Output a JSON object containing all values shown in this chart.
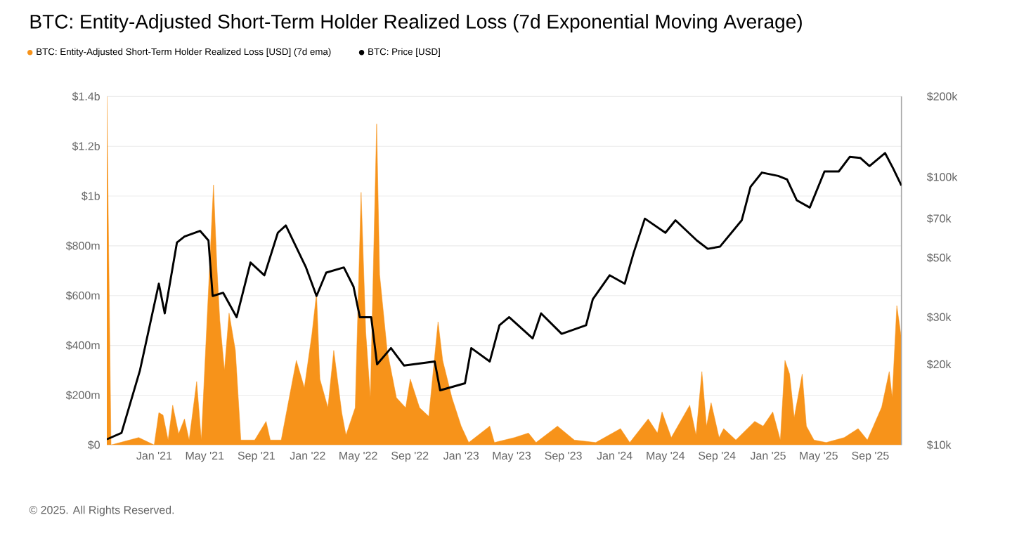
{
  "chart_data": {
    "type": "area",
    "title": "BTC: Entity-Adjusted Short-Term Holder Realized Loss (7d Exponential Moving Average)",
    "annotations": [
      "© 2025. All Rights Reserved."
    ],
    "legend": "top left",
    "grid": "y",
    "log": "y2",
    "xlim": [
      "2020-09-10",
      "2025-11-14"
    ],
    "xticks": [
      {
        "value": "2021-01-01",
        "label": "Jan '21"
      },
      {
        "value": "2021-05-01",
        "label": "May '21"
      },
      {
        "value": "2021-09-01",
        "label": "Sep '21"
      },
      {
        "value": "2022-01-01",
        "label": "Jan '22"
      },
      {
        "value": "2022-05-01",
        "label": "May '22"
      },
      {
        "value": "2022-09-01",
        "label": "Sep '22"
      },
      {
        "value": "2023-01-01",
        "label": "Jan '23"
      },
      {
        "value": "2023-05-01",
        "label": "May '23"
      },
      {
        "value": "2023-09-01",
        "label": "Sep '23"
      },
      {
        "value": "2024-01-01",
        "label": "Jan '24"
      },
      {
        "value": "2024-05-01",
        "label": "May '24"
      },
      {
        "value": "2024-09-01",
        "label": "Sep '24"
      },
      {
        "value": "2025-01-01",
        "label": "Jan '25"
      },
      {
        "value": "2025-05-01",
        "label": "May '25"
      },
      {
        "value": "2025-09-01",
        "label": "Sep '25"
      }
    ],
    "ylim": [
      0,
      1400000000.0
    ],
    "yticks": [
      {
        "value": 0,
        "label": "$0"
      },
      {
        "value": 200000000.0,
        "label": "$200m"
      },
      {
        "value": 400000000.0,
        "label": "$400m"
      },
      {
        "value": 600000000.0,
        "label": "$600m"
      },
      {
        "value": 800000000.0,
        "label": "$800m"
      },
      {
        "value": 1000000000.0,
        "label": "$1b"
      },
      {
        "value": 1200000000.0,
        "label": "$1.2b"
      },
      {
        "value": 1400000000.0,
        "label": "$1.4b"
      }
    ],
    "y2lim": [
      10000,
      200000
    ],
    "y2ticks": [
      {
        "value": 10000,
        "label": "$10k"
      },
      {
        "value": 20000,
        "label": "$20k"
      },
      {
        "value": 30000,
        "label": "$30k"
      },
      {
        "value": 50000,
        "label": "$50k"
      },
      {
        "value": 70000,
        "label": "$70k"
      },
      {
        "value": 100000,
        "label": "$100k"
      },
      {
        "value": 200000,
        "label": "$200k"
      }
    ],
    "series": [
      {
        "name": "BTC: Entity-Adjusted Short-Term Holder Realized Loss [USD] (7d ema)",
        "color": "#f7931a",
        "x": [
          "2020-09-10",
          "2020-09-20",
          "2020-11-25",
          "2021-01-01",
          "2021-01-12",
          "2021-01-22",
          "2021-02-03",
          "2021-02-14",
          "2021-02-28",
          "2021-03-14",
          "2021-03-25",
          "2021-04-12",
          "2021-04-23",
          "2021-05-22",
          "2021-05-30",
          "2021-06-06",
          "2021-06-17",
          "2021-06-28",
          "2021-07-13",
          "2021-07-26",
          "2021-08-28",
          "2021-09-24",
          "2021-10-04",
          "2021-10-30",
          "2021-12-05",
          "2021-12-24",
          "2022-01-11",
          "2022-01-22",
          "2022-01-30",
          "2022-02-18",
          "2022-03-04",
          "2022-03-23",
          "2022-04-02",
          "2022-04-24",
          "2022-05-08",
          "2022-05-19",
          "2022-05-30",
          "2022-06-14",
          "2022-06-21",
          "2022-07-09",
          "2022-07-31",
          "2022-08-22",
          "2022-09-02",
          "2022-09-24",
          "2022-10-16",
          "2022-11-07",
          "2022-11-18",
          "2022-12-10",
          "2023-01-01",
          "2023-01-19",
          "2023-03-10",
          "2023-03-21",
          "2023-05-08",
          "2023-06-10",
          "2023-06-28",
          "2023-08-18",
          "2023-09-27",
          "2023-11-17",
          "2024-01-15",
          "2024-02-06",
          "2024-03-21",
          "2024-04-12",
          "2024-04-23",
          "2024-05-15",
          "2024-06-28",
          "2024-07-13",
          "2024-07-27",
          "2024-08-07",
          "2024-08-18",
          "2024-09-06",
          "2024-09-17",
          "2024-10-16",
          "2024-11-30",
          "2024-12-20",
          "2025-01-12",
          "2025-01-30",
          "2025-02-10",
          "2025-02-21",
          "2025-03-04",
          "2025-03-23",
          "2025-04-02",
          "2025-04-20",
          "2025-05-19",
          "2025-07-01",
          "2025-08-03",
          "2025-08-25",
          "2025-09-28",
          "2025-10-16",
          "2025-10-23",
          "2025-11-03",
          "2025-11-14"
        ],
        "values": [
          1400000000.0,
          0,
          30000000.0,
          0,
          130000000.0,
          120000000.0,
          20000000.0,
          160000000.0,
          45000000.0,
          105000000.0,
          20000000.0,
          255000000.0,
          20000000.0,
          1045000000.0,
          720000000.0,
          500000000.0,
          300000000.0,
          530000000.0,
          380000000.0,
          20000000.0,
          20000000.0,
          95000000.0,
          20000000.0,
          20000000.0,
          340000000.0,
          230000000.0,
          445000000.0,
          610000000.0,
          265000000.0,
          150000000.0,
          380000000.0,
          130000000.0,
          40000000.0,
          150000000.0,
          1015000000.0,
          455000000.0,
          190000000.0,
          1290000000.0,
          685000000.0,
          380000000.0,
          190000000.0,
          150000000.0,
          265000000.0,
          150000000.0,
          115000000.0,
          495000000.0,
          340000000.0,
          190000000.0,
          76000000.0,
          10000000.0,
          76000000.0,
          10000000.0,
          30000000.0,
          48000000.0,
          10000000.0,
          76000000.0,
          20000000.0,
          10000000.0,
          66000000.0,
          10000000.0,
          105000000.0,
          48000000.0,
          133000000.0,
          30000000.0,
          160000000.0,
          40000000.0,
          295000000.0,
          76000000.0,
          170000000.0,
          30000000.0,
          66000000.0,
          20000000.0,
          95000000.0,
          76000000.0,
          133000000.0,
          20000000.0,
          340000000.0,
          285000000.0,
          110000000.0,
          285000000.0,
          76000000.0,
          20000000.0,
          10000000.0,
          30000000.0,
          66000000.0,
          20000000.0,
          152000000.0,
          295000000.0,
          190000000.0,
          560000000.0,
          427000000.0
        ]
      },
      {
        "name": "BTC: Price [USD]",
        "type": "line",
        "axis": "y2",
        "color": "#000000",
        "x": [
          "2020-09-10",
          "2020-10-15",
          "2020-11-28",
          "2021-01-12",
          "2021-01-26",
          "2021-02-24",
          "2021-03-14",
          "2021-04-20",
          "2021-05-10",
          "2021-05-20",
          "2021-06-14",
          "2021-07-16",
          "2021-08-18",
          "2021-09-20",
          "2021-10-22",
          "2021-11-10",
          "2021-12-28",
          "2022-01-22",
          "2022-02-14",
          "2022-03-28",
          "2022-04-20",
          "2022-05-05",
          "2022-06-01",
          "2022-06-15",
          "2022-07-18",
          "2022-08-18",
          "2022-10-30",
          "2022-11-12",
          "2023-01-10",
          "2023-01-25",
          "2023-03-10",
          "2023-04-02",
          "2023-04-25",
          "2023-06-20",
          "2023-07-10",
          "2023-08-28",
          "2023-10-25",
          "2023-11-10",
          "2023-12-20",
          "2024-01-25",
          "2024-02-15",
          "2024-03-13",
          "2024-05-01",
          "2024-05-25",
          "2024-07-15",
          "2024-08-10",
          "2024-09-08",
          "2024-10-30",
          "2024-11-20",
          "2024-12-17",
          "2025-01-25",
          "2025-02-15",
          "2025-03-10",
          "2025-04-10",
          "2025-05-15",
          "2025-06-18",
          "2025-07-14",
          "2025-08-08",
          "2025-08-30",
          "2025-10-06",
          "2025-10-25",
          "2025-11-14"
        ],
        "values": [
          10500,
          11100,
          19000,
          40000,
          31000,
          57000,
          60000,
          63000,
          58000,
          36000,
          37000,
          30000,
          48000,
          43000,
          62000,
          66000,
          46000,
          36000,
          44000,
          46000,
          39000,
          30000,
          30000,
          20000,
          23000,
          19800,
          20500,
          16000,
          17000,
          23000,
          20500,
          28000,
          30000,
          25000,
          31000,
          26000,
          28000,
          35000,
          43000,
          40000,
          52000,
          70000,
          62000,
          69000,
          58000,
          54000,
          55000,
          69000,
          92000,
          104000,
          101000,
          98000,
          82000,
          77000,
          105000,
          105000,
          119000,
          118000,
          110000,
          123000,
          108000,
          93000
        ]
      }
    ]
  }
}
